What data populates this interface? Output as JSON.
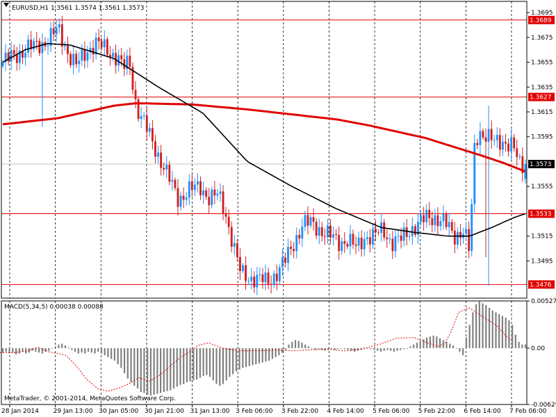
{
  "chart_data": [
    {
      "type": "candlestick",
      "title": "EURUSD,H1 1.3561 1.3574 1.3561 1.3573",
      "colors": {
        "bull": "#1e90ff",
        "bear": "#d21e1e",
        "hline": "#e00000",
        "ma_slow": "#e00000",
        "ma_fast": "#000000",
        "grid": "#000000",
        "current_price": "#c0c0c0"
      },
      "ylim": [
        1.3465,
        1.3704
      ],
      "yticks": [
        "1.3695",
        "1.3675",
        "1.3655",
        "1.3635",
        "1.3615",
        "1.3595",
        "1.3555",
        "1.3515",
        "1.3495"
      ],
      "xticks": [
        "28 Jan 2014",
        "29 Jan 13:00",
        "30 Jan 05:00",
        "30 Jan 21:00",
        "31 Jan 13:00",
        "3 Feb 06:00",
        "3 Feb 22:00",
        "4 Feb 14:00",
        "5 Feb 06:00",
        "5 Feb 22:00",
        "6 Feb 14:00",
        "7 Feb 06:00"
      ],
      "hlines": [
        {
          "label": "1.3689",
          "value": 1.3689
        },
        {
          "label": "1.3627",
          "value": 1.3627
        },
        {
          "label": "1.3533",
          "value": 1.3533
        },
        {
          "label": "1.3476",
          "value": 1.3476
        }
      ],
      "current_price": {
        "label": "1.3573",
        "value": 1.3573
      },
      "price_path": [
        [
          0,
          1.3655
        ],
        [
          10,
          1.3665
        ],
        [
          20,
          1.3672
        ],
        [
          25,
          1.3682
        ],
        [
          30,
          1.366
        ],
        [
          33,
          1.3652
        ],
        [
          38,
          1.3665
        ],
        [
          42,
          1.367
        ],
        [
          47,
          1.3665
        ],
        [
          52,
          1.3658
        ],
        [
          54,
          1.365
        ],
        [
          57,
          1.3655
        ],
        [
          60,
          1.362
        ],
        [
          65,
          1.36
        ],
        [
          70,
          1.358
        ],
        [
          75,
          1.356
        ],
        [
          79,
          1.3545
        ],
        [
          84,
          1.3552
        ],
        [
          89,
          1.3555
        ],
        [
          93,
          1.3545
        ],
        [
          97,
          1.3548
        ],
        [
          100,
          1.3535
        ],
        [
          104,
          1.3505
        ],
        [
          107,
          1.3485
        ],
        [
          111,
          1.3482
        ],
        [
          115,
          1.348
        ],
        [
          119,
          1.3478
        ],
        [
          123,
          1.3485
        ],
        [
          127,
          1.3495
        ],
        [
          131,
          1.351
        ],
        [
          135,
          1.3525
        ],
        [
          139,
          1.3525
        ],
        [
          143,
          1.352
        ],
        [
          147,
          1.3515
        ],
        [
          151,
          1.351
        ],
        [
          155,
          1.3512
        ],
        [
          159,
          1.3505
        ],
        [
          163,
          1.3515
        ],
        [
          167,
          1.3515
        ],
        [
          171,
          1.352
        ],
        [
          175,
          1.351
        ],
        [
          179,
          1.3512
        ],
        [
          183,
          1.352
        ],
        [
          187,
          1.3525
        ],
        [
          191,
          1.353
        ],
        [
          195,
          1.353
        ],
        [
          199,
          1.3525
        ],
        [
          203,
          1.3515
        ],
        [
          207,
          1.352
        ],
        [
          209,
          1.351
        ],
        [
          210,
          1.35
        ],
        [
          212,
          1.3585
        ],
        [
          214,
          1.36
        ],
        [
          218,
          1.3595
        ],
        [
          221,
          1.359
        ],
        [
          225,
          1.3592
        ],
        [
          229,
          1.3588
        ],
        [
          233,
          1.357
        ],
        [
          235,
          1.3573
        ]
      ],
      "moving_averages": [
        {
          "color": "#e00000",
          "points": [
            [
              0,
              1.3605
            ],
            [
              25,
              1.361
            ],
            [
              50,
              1.362
            ],
            [
              60,
              1.3622
            ],
            [
              85,
              1.3621
            ],
            [
              110,
              1.3617
            ],
            [
              150,
              1.3609
            ],
            [
              165,
              1.3604
            ],
            [
              190,
              1.3594
            ],
            [
              215,
              1.358
            ],
            [
              225,
              1.3574
            ],
            [
              235,
              1.3567
            ]
          ]
        },
        {
          "color": "#000000",
          "points": [
            [
              0,
              1.3655
            ],
            [
              10,
              1.3665
            ],
            [
              20,
              1.367
            ],
            [
              30,
              1.3669
            ],
            [
              50,
              1.3658
            ],
            [
              70,
              1.3635
            ],
            [
              90,
              1.3614
            ],
            [
              110,
              1.3575
            ],
            [
              130,
              1.3555
            ],
            [
              150,
              1.3537
            ],
            [
              170,
              1.3522
            ],
            [
              185,
              1.3518
            ],
            [
              200,
              1.3515
            ],
            [
              210,
              1.3515
            ],
            [
              220,
              1.3522
            ],
            [
              230,
              1.353
            ],
            [
              235,
              1.3533
            ]
          ]
        }
      ]
    },
    {
      "type": "histogram",
      "title": "MACD(5,34,5) 0.00038 0.00088",
      "ylim": [
        -0.00629,
        0.00527
      ],
      "yticks": [
        "0.00527",
        "0.00",
        "-0.00629"
      ],
      "series": [
        {
          "type": "bar",
          "color": "#808080",
          "values": [
            -0.0005,
            -0.0004,
            -0.0006,
            -0.0005,
            -0.0007,
            -0.0006,
            -0.0004,
            -0.0006,
            -0.0005,
            -0.0003,
            -0.0004,
            -0.0005,
            -0.0006,
            -0.0004,
            -0.0003,
            0.0,
            0.0002,
            0.0004,
            0.0005,
            0.0003,
            0.0001,
            -0.0002,
            -0.0004,
            -0.0006,
            -0.0005,
            -0.0006,
            -0.0004,
            -0.0005,
            -0.0006,
            -0.0004,
            -0.0006,
            -0.0008,
            -0.001,
            -0.0012,
            -0.0014,
            -0.0018,
            -0.0022,
            -0.0028,
            -0.0034,
            -0.0038,
            -0.0042,
            -0.0045,
            -0.0049,
            -0.005,
            -0.0052,
            -0.0053,
            -0.0052,
            -0.0051,
            -0.005,
            -0.0049,
            -0.0048,
            -0.0047,
            -0.0045,
            -0.0043,
            -0.0041,
            -0.004,
            -0.0038,
            -0.0037,
            -0.0036,
            -0.0035,
            -0.0033,
            -0.0031,
            -0.003,
            -0.0032,
            -0.0036,
            -0.004,
            -0.0042,
            -0.004,
            -0.0036,
            -0.0032,
            -0.0029,
            -0.0026,
            -0.0024,
            -0.0022,
            -0.0021,
            -0.002,
            -0.0019,
            -0.0018,
            -0.0017,
            -0.0016,
            -0.0015,
            -0.0014,
            -0.0012,
            -0.001,
            -0.0008,
            -0.0005,
            -0.0002,
            0.0004,
            0.0007,
            0.0009,
            0.0008,
            0.0006,
            0.0004,
            0.0002,
            0.0,
            -0.0002,
            -0.0001,
            -0.0002,
            -0.0003,
            -0.0002,
            -0.0001,
            -0.0002,
            -0.0001,
            0.0,
            -0.0001,
            -0.0002,
            -0.0003,
            -0.0004,
            -0.0003,
            -0.0002,
            -0.0001,
            0.0,
            -0.0001,
            -0.0002,
            -0.0003,
            -0.0004,
            -0.0003,
            -0.0002,
            -0.0003,
            -0.0004,
            -0.0003,
            -0.0002,
            -0.0001,
            0.0,
            0.0002,
            0.0004,
            0.0006,
            0.0008,
            0.001,
            0.0012,
            0.0013,
            0.0014,
            0.0013,
            0.0011,
            0.0009,
            0.0007,
            0.0005,
            0.0003,
            0.0,
            -0.0004,
            -0.0008,
            0.0012,
            0.0026,
            0.004,
            0.0049,
            0.0052,
            0.005,
            0.0048,
            0.0045,
            0.0042,
            0.004,
            0.0038,
            0.0036,
            0.0034,
            0.0031,
            0.0026,
            0.0015,
            0.0007,
            0.0004,
            0.0004
          ]
        },
        {
          "type": "line",
          "style": "dotted",
          "color": "#e00000",
          "points": [
            [
              0,
              -0.0005
            ],
            [
              20,
              -0.0005
            ],
            [
              40,
              -0.0003
            ],
            [
              55,
              0.0001
            ],
            [
              70,
              -0.0004
            ],
            [
              95,
              -0.0008
            ],
            [
              110,
              -0.002
            ],
            [
              125,
              -0.0035
            ],
            [
              140,
              -0.0045
            ],
            [
              155,
              -0.0048
            ],
            [
              170,
              -0.0045
            ],
            [
              185,
              -0.004
            ],
            [
              200,
              -0.0033
            ],
            [
              215,
              -0.0037
            ],
            [
              230,
              -0.003
            ],
            [
              245,
              -0.002
            ],
            [
              260,
              -0.001
            ],
            [
              275,
              -0.0003
            ],
            [
              285,
              0.0003
            ],
            [
              300,
              0.0006
            ],
            [
              320,
              0.0
            ],
            [
              345,
              -0.0003
            ],
            [
              370,
              -0.0003
            ],
            [
              395,
              -0.0002
            ],
            [
              420,
              -0.0003
            ],
            [
              445,
              -0.0002
            ],
            [
              470,
              -0.0001
            ],
            [
              495,
              -0.0003
            ],
            [
              520,
              -0.0001
            ],
            [
              545,
              0.0004
            ],
            [
              570,
              0.0011
            ],
            [
              595,
              0.0012
            ],
            [
              615,
              0.0006
            ],
            [
              630,
              0.0002
            ],
            [
              640,
              0.0005
            ],
            [
              650,
              0.002
            ],
            [
              660,
              0.004
            ],
            [
              675,
              0.0045
            ],
            [
              695,
              0.0035
            ],
            [
              715,
              0.0025
            ],
            [
              730,
              0.0012
            ],
            [
              735,
              0.0009
            ]
          ]
        }
      ]
    }
  ],
  "footer": {
    "copyright": "MetaTrader, © 2001-2014, MetaQuotes Software Corp."
  }
}
